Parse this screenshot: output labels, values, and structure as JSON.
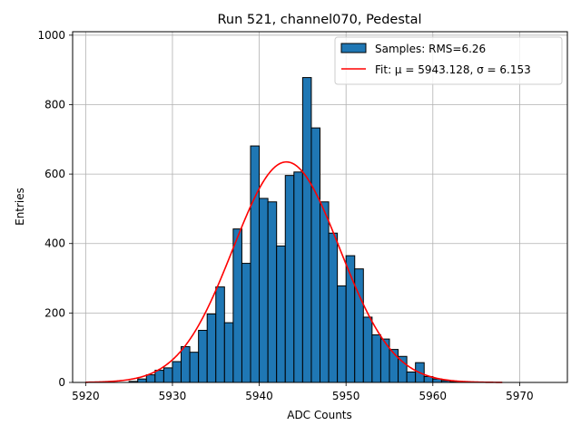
{
  "chart_data": {
    "type": "bar",
    "title": "Run 521, channel070, Pedestal",
    "xlabel": "ADC Counts",
    "ylabel": "Entries",
    "xlim": [
      5918.5,
      5975.5
    ],
    "ylim": [
      0,
      1010
    ],
    "xticks": [
      5920,
      5930,
      5940,
      5950,
      5960,
      5970
    ],
    "yticks": [
      0,
      200,
      400,
      600,
      800,
      1000
    ],
    "grid": true,
    "legend_position": "top-right",
    "bin_width": 1,
    "series": [
      {
        "name": "Samples: RMS=6.26",
        "kind": "histogram",
        "color": "#1f77b4",
        "edgecolor": "#000000",
        "bin_left": [
          5925,
          5926,
          5927,
          5928,
          5929,
          5930,
          5931,
          5932,
          5933,
          5934,
          5935,
          5936,
          5937,
          5938,
          5939,
          5940,
          5941,
          5942,
          5943,
          5944,
          5945,
          5946,
          5947,
          5948,
          5949,
          5950,
          5951,
          5952,
          5953,
          5954,
          5955,
          5956,
          5957,
          5958,
          5959,
          5960,
          5961,
          5962
        ],
        "counts": [
          3,
          10,
          22,
          35,
          42,
          60,
          103,
          87,
          150,
          197,
          275,
          172,
          442,
          343,
          681,
          530,
          520,
          393,
          596,
          606,
          878,
          733,
          520,
          430,
          278,
          365,
          327,
          188,
          137,
          125,
          95,
          75,
          30,
          57,
          17,
          10,
          5,
          2
        ]
      },
      {
        "name": "Fit: $\\mu$ = 5943.128, $\\sigma$ = 6.153",
        "legend_text": "Fit: μ = 5943.128, σ = 6.153",
        "kind": "gaussian-fit",
        "color": "#ff0000",
        "mu": 5943.128,
        "sigma": 6.153,
        "peak": 635,
        "x_range": [
          5920,
          5968
        ]
      }
    ]
  }
}
